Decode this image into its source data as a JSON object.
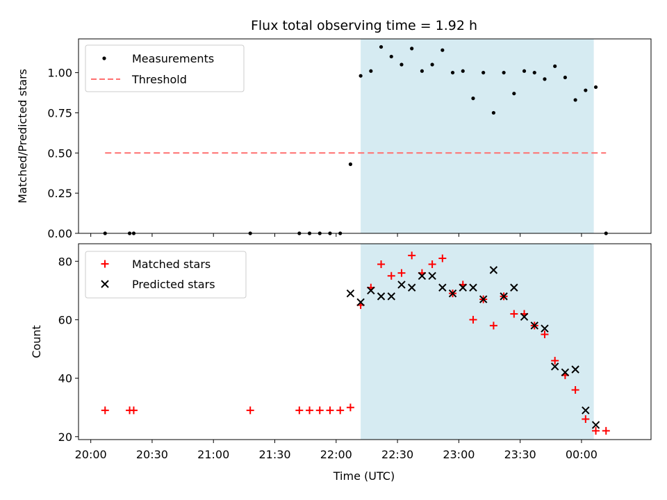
{
  "chart_data": [
    {
      "type": "scatter",
      "title": "Flux total observing time = 1.92 h",
      "xlabel": "",
      "ylabel": "Matched/Predicted stars",
      "ylim": [
        0,
        1.21
      ],
      "xlim": [
        "19:54",
        "00:34"
      ],
      "x_unit": "time (UTC)",
      "yticks": [
        "0.00",
        "0.25",
        "0.50",
        "0.75",
        "1.00"
      ],
      "legend_position": "upper-left",
      "shaded_span": {
        "from": "22:12",
        "to": "00:06",
        "color": "#add8e6"
      },
      "series": [
        {
          "name": "Measurements",
          "marker": "dot",
          "color": "#000000",
          "x": [
            "20:07",
            "20:19",
            "20:21",
            "21:18",
            "21:42",
            "21:47",
            "21:52",
            "21:57",
            "22:02",
            "22:07",
            "22:12",
            "22:17",
            "22:22",
            "22:27",
            "22:32",
            "22:37",
            "22:42",
            "22:47",
            "22:52",
            "22:57",
            "23:02",
            "23:07",
            "23:12",
            "23:17",
            "23:22",
            "23:27",
            "23:32",
            "23:37",
            "23:42",
            "23:47",
            "23:52",
            "23:57",
            "24:02",
            "24:07",
            "24:12"
          ],
          "y": [
            0,
            0,
            0,
            0,
            0,
            0,
            0,
            0,
            0,
            0.43,
            0.98,
            1.01,
            1.16,
            1.1,
            1.05,
            1.15,
            1.01,
            1.05,
            1.14,
            1.0,
            1.01,
            0.84,
            1.0,
            0.75,
            1.0,
            0.87,
            1.01,
            1.0,
            0.96,
            1.04,
            0.97,
            0.83,
            0.89,
            0.91,
            0.0
          ]
        },
        {
          "name": "Threshold",
          "marker": "dashed-line",
          "color": "#ff6f6f",
          "x": [
            "20:07",
            "24:12"
          ],
          "y": [
            0.5,
            0.5
          ]
        }
      ]
    },
    {
      "type": "scatter",
      "title": "",
      "xlabel": "Time (UTC)",
      "ylabel": "Count",
      "ylim": [
        19,
        86
      ],
      "xlim": [
        "19:54",
        "00:34"
      ],
      "x_unit": "time (UTC)",
      "yticks": [
        "20",
        "40",
        "60",
        "80"
      ],
      "xticks": [
        "20:00",
        "20:30",
        "21:00",
        "21:30",
        "22:00",
        "22:30",
        "23:00",
        "23:30",
        "00:00"
      ],
      "legend_position": "upper-left",
      "shaded_span": {
        "from": "22:12",
        "to": "00:06",
        "color": "#add8e6"
      },
      "series": [
        {
          "name": "Matched stars",
          "marker": "plus",
          "color": "#ff0000",
          "x": [
            "20:07",
            "20:19",
            "20:21",
            "21:18",
            "21:42",
            "21:47",
            "21:52",
            "21:57",
            "22:02",
            "22:07",
            "22:12",
            "22:17",
            "22:22",
            "22:27",
            "22:32",
            "22:37",
            "22:42",
            "22:47",
            "22:52",
            "22:57",
            "23:02",
            "23:07",
            "23:12",
            "23:17",
            "23:22",
            "23:27",
            "23:32",
            "23:37",
            "23:42",
            "23:47",
            "23:52",
            "23:57",
            "24:02",
            "24:07",
            "24:12"
          ],
          "y": [
            29,
            29,
            29,
            29,
            29,
            29,
            29,
            29,
            29,
            30,
            65,
            71,
            79,
            75,
            76,
            82,
            76,
            79,
            81,
            69,
            72,
            60,
            67,
            58,
            68,
            62,
            62,
            58,
            55,
            46,
            41,
            36,
            26,
            22,
            22
          ]
        },
        {
          "name": "Predicted stars",
          "marker": "x",
          "color": "#000000",
          "x": [
            "22:07",
            "22:12",
            "22:17",
            "22:22",
            "22:27",
            "22:32",
            "22:37",
            "22:42",
            "22:47",
            "22:52",
            "22:57",
            "23:02",
            "23:07",
            "23:12",
            "23:17",
            "23:22",
            "23:27",
            "23:32",
            "23:37",
            "23:42",
            "23:47",
            "23:52",
            "23:57",
            "24:02",
            "24:07"
          ],
          "y": [
            69,
            66,
            70,
            68,
            68,
            72,
            71,
            75,
            75,
            71,
            69,
            71,
            71,
            67,
            77,
            68,
            71,
            61,
            58,
            57,
            44,
            42,
            43,
            29,
            24
          ]
        }
      ]
    }
  ]
}
